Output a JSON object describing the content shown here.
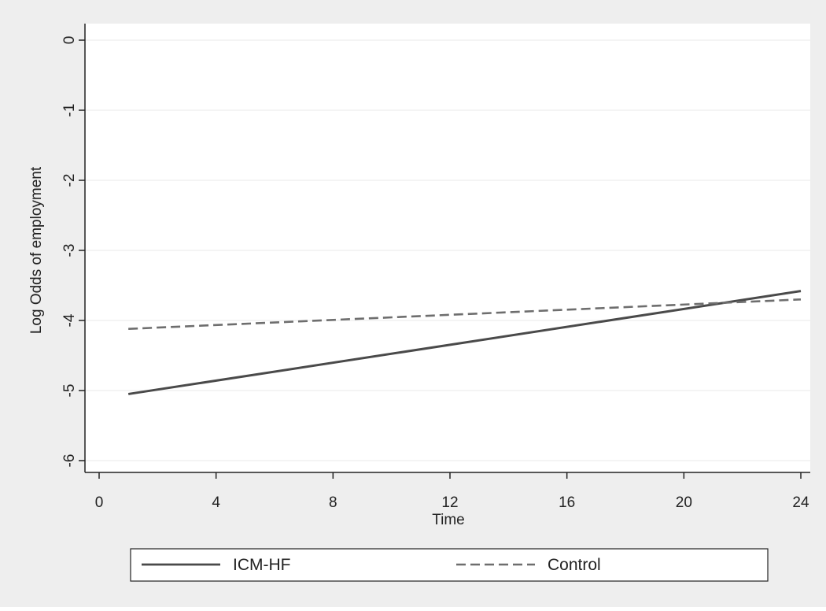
{
  "chart_data": {
    "type": "line",
    "title": "",
    "xlabel": "Time",
    "ylabel": "Log Odds of employment",
    "xlim": [
      0,
      24
    ],
    "ylim": [
      -6,
      0
    ],
    "x_ticks": [
      "0",
      "4",
      "8",
      "12",
      "16",
      "20",
      "24"
    ],
    "y_ticks": [
      "0",
      "-1",
      "-2",
      "-3",
      "-4",
      "-5",
      "-6"
    ],
    "grid": true,
    "legend_position": "bottom",
    "series": [
      {
        "name": "ICM-HF",
        "style": "solid",
        "color": "#4a4a4a",
        "x": [
          1,
          24
        ],
        "y": [
          -5.05,
          -3.58
        ]
      },
      {
        "name": "Control",
        "style": "dashed",
        "color": "#6e6e6e",
        "x": [
          1,
          24
        ],
        "y": [
          -4.12,
          -3.7
        ]
      }
    ]
  },
  "colors": {
    "outer_background": "#eeeeee",
    "plot_background": "#ffffff",
    "gridline": "#eaeaea",
    "axis": "#222222"
  }
}
